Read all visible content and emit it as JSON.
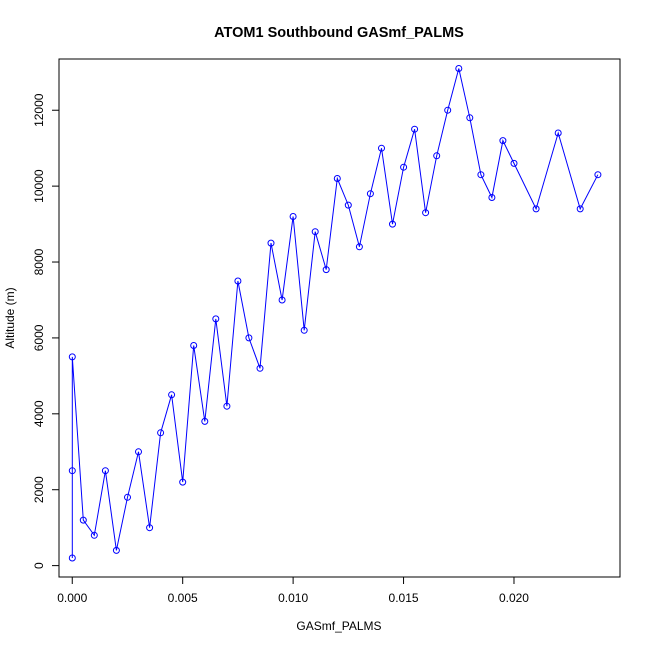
{
  "chart_data": {
    "type": "scatter",
    "title": "ATOM1 Southbound GASmf_PALMS",
    "xlabel": "GASmf_PALMS",
    "ylabel": "Altitude (m)",
    "xlim": [
      -0.0006,
      0.0248
    ],
    "ylim": [
      -300,
      13350
    ],
    "x_ticks": [
      0.0,
      0.005,
      0.01,
      0.015,
      0.02
    ],
    "x_tick_labels": [
      "0.000",
      "0.005",
      "0.010",
      "0.015",
      "0.020"
    ],
    "y_ticks": [
      0,
      2000,
      4000,
      6000,
      8000,
      10000,
      12000
    ],
    "y_tick_labels": [
      "0",
      "2000",
      "4000",
      "6000",
      "8000",
      "10000",
      "12000"
    ],
    "grid": false,
    "legend": "none",
    "marker": "open-circle",
    "connect_points": true,
    "color": "#0000ff",
    "series": [
      {
        "x": [
          0.0,
          0.0,
          0.0,
          0.0005,
          0.001,
          0.0015,
          0.002,
          0.0025,
          0.003,
          0.0035,
          0.004,
          0.0045,
          0.005,
          0.0055,
          0.006,
          0.0065,
          0.007,
          0.0075,
          0.008,
          0.0085,
          0.009,
          0.0095,
          0.01,
          0.0105,
          0.011,
          0.0115,
          0.012,
          0.0125,
          0.013,
          0.0135,
          0.014,
          0.0145,
          0.015,
          0.0155,
          0.016,
          0.0165,
          0.017,
          0.0175,
          0.018,
          0.0185,
          0.019,
          0.0195,
          0.02,
          0.021,
          0.022,
          0.023,
          0.0238
        ],
        "y": [
          200,
          2500,
          5500,
          1200,
          800,
          2500,
          400,
          1800,
          3000,
          1000,
          3500,
          4500,
          2200,
          5800,
          3800,
          6500,
          4200,
          7500,
          6000,
          5200,
          8500,
          7000,
          9200,
          6200,
          8800,
          7800,
          10200,
          9500,
          8400,
          9800,
          11000,
          9000,
          10500,
          11500,
          9300,
          10800,
          12000,
          13100,
          11800,
          10300,
          9700,
          11200,
          10600,
          9400,
          11400,
          9400,
          10300
        ]
      }
    ]
  }
}
